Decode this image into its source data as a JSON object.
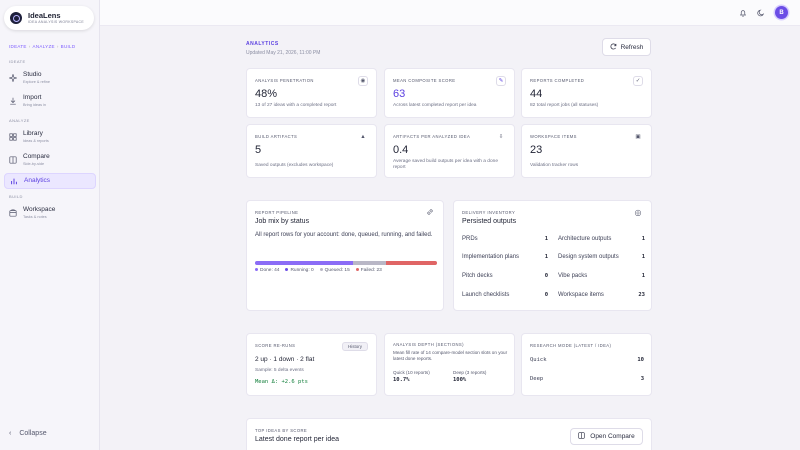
{
  "brand": {
    "name": "IdeaLens",
    "tagline": "IDEA ANALYSIS WORKSPACE"
  },
  "breadcrumb": [
    "IDEATE",
    "ANALYZE",
    "BUILD"
  ],
  "sidebar": {
    "sections": [
      {
        "label": "IDEATE"
      },
      {
        "label": "ANALYZE"
      },
      {
        "label": "BUILD"
      }
    ],
    "items": [
      {
        "label": "Studio",
        "sub": "Explore & refine",
        "icon": "sparkle-icon"
      },
      {
        "label": "Import",
        "sub": "Bring ideas in",
        "icon": "download-icon"
      },
      {
        "label": "Library",
        "sub": "Ideas & reports",
        "icon": "grid-icon"
      },
      {
        "label": "Compare",
        "sub": "Side-by-side",
        "icon": "columns-icon"
      },
      {
        "label": "Analytics",
        "sub": "",
        "icon": "bar-chart-icon",
        "active": true
      },
      {
        "label": "Workspace",
        "sub": "Tasks & notes",
        "icon": "workspace-icon"
      }
    ],
    "collapse_label": "Collapse"
  },
  "topbar": {
    "bell_icon": "bell-icon",
    "theme_icon": "moon-icon",
    "avatar_initial": "B"
  },
  "page": {
    "eyebrow": "ANALYTICS",
    "updated": "Updated May 21, 2026, 11:00 PM",
    "refresh_label": "Refresh"
  },
  "stats": [
    {
      "label": "ANALYSIS PENETRATION",
      "value": "48%",
      "sub": "13 of 27 ideas with a completed report",
      "icon": "target-icon",
      "accent": false
    },
    {
      "label": "MEAN COMPOSITE SCORE",
      "value": "63",
      "sub": "Across latest completed report per idea",
      "icon": "wand-icon",
      "accent": true
    },
    {
      "label": "REPORTS COMPLETED",
      "value": "44",
      "sub": "82 total report jobs (all statuses)",
      "icon": "check-icon",
      "accent": false
    },
    {
      "label": "BUILD ARTIFACTS",
      "value": "5",
      "sub": "Saved outputs (excludes workspace)",
      "icon": "flask-icon",
      "accent": false
    },
    {
      "label": "ARTIFACTS PER ANALYZED IDEA",
      "value": "0.4",
      "sub": "Average saved build outputs per idea with a done report",
      "icon": "download-icon",
      "accent": false
    },
    {
      "label": "WORKSPACE ITEMS",
      "value": "23",
      "sub": "Validation tracker rows",
      "icon": "clipboard-icon",
      "accent": false
    }
  ],
  "pipeline": {
    "label": "REPORT PIPELINE",
    "title": "Job mix by status",
    "description": "All report rows for your account: done, queued, running, and failed.",
    "icon": "link-icon",
    "segments": [
      {
        "name": "Done",
        "count": 44,
        "color": "#8b6cf6"
      },
      {
        "name": "Running",
        "count": 0,
        "color": "#6b4de6"
      },
      {
        "name": "Queued",
        "count": 15,
        "color": "#b9b7c6"
      },
      {
        "name": "Failed",
        "count": 23,
        "color": "#e06565"
      }
    ],
    "legend": [
      "Done: 44",
      "Running: 0",
      "Queued: 15",
      "Failed: 23"
    ]
  },
  "inventory": {
    "label": "DELIVERY INVENTORY",
    "title": "Persisted outputs",
    "icon": "target-icon",
    "left": [
      {
        "name": "PRDs",
        "count": "1"
      },
      {
        "name": "Implementation plans",
        "count": "1"
      },
      {
        "name": "Pitch decks",
        "count": "0"
      },
      {
        "name": "Launch checklists",
        "count": "0"
      }
    ],
    "right": [
      {
        "name": "Architecture outputs",
        "count": "1"
      },
      {
        "name": "Design system outputs",
        "count": "1"
      },
      {
        "name": "Vibe packs",
        "count": "1"
      },
      {
        "name": "Workspace items",
        "count": "23"
      }
    ]
  },
  "reruns": {
    "label": "SCORE RE-RUNS",
    "history_label": "History",
    "summary": "2 up · 1 down · 2 flat",
    "sample": "Sample: 5 delta events",
    "mean": "Mean Δ: +2.6 pts"
  },
  "depth": {
    "label": "ANALYSIS DEPTH (SECTIONS)",
    "description": "Mean fill rate of 14 compare-model section slots on your latest done reports.",
    "quick": {
      "label": "Quick (10 reports)",
      "value": "10.7%"
    },
    "deep": {
      "label": "Deep (3 reports)",
      "value": "100%"
    }
  },
  "research": {
    "label": "RESEARCH MODE (LATEST / IDEA)",
    "rows": [
      {
        "name": "Quick",
        "count": "10"
      },
      {
        "name": "Deep",
        "count": "3"
      }
    ]
  },
  "top_ideas": {
    "label": "TOP IDEAS BY SCORE",
    "title": "Latest done report per idea",
    "button_label": "Open Compare"
  }
}
